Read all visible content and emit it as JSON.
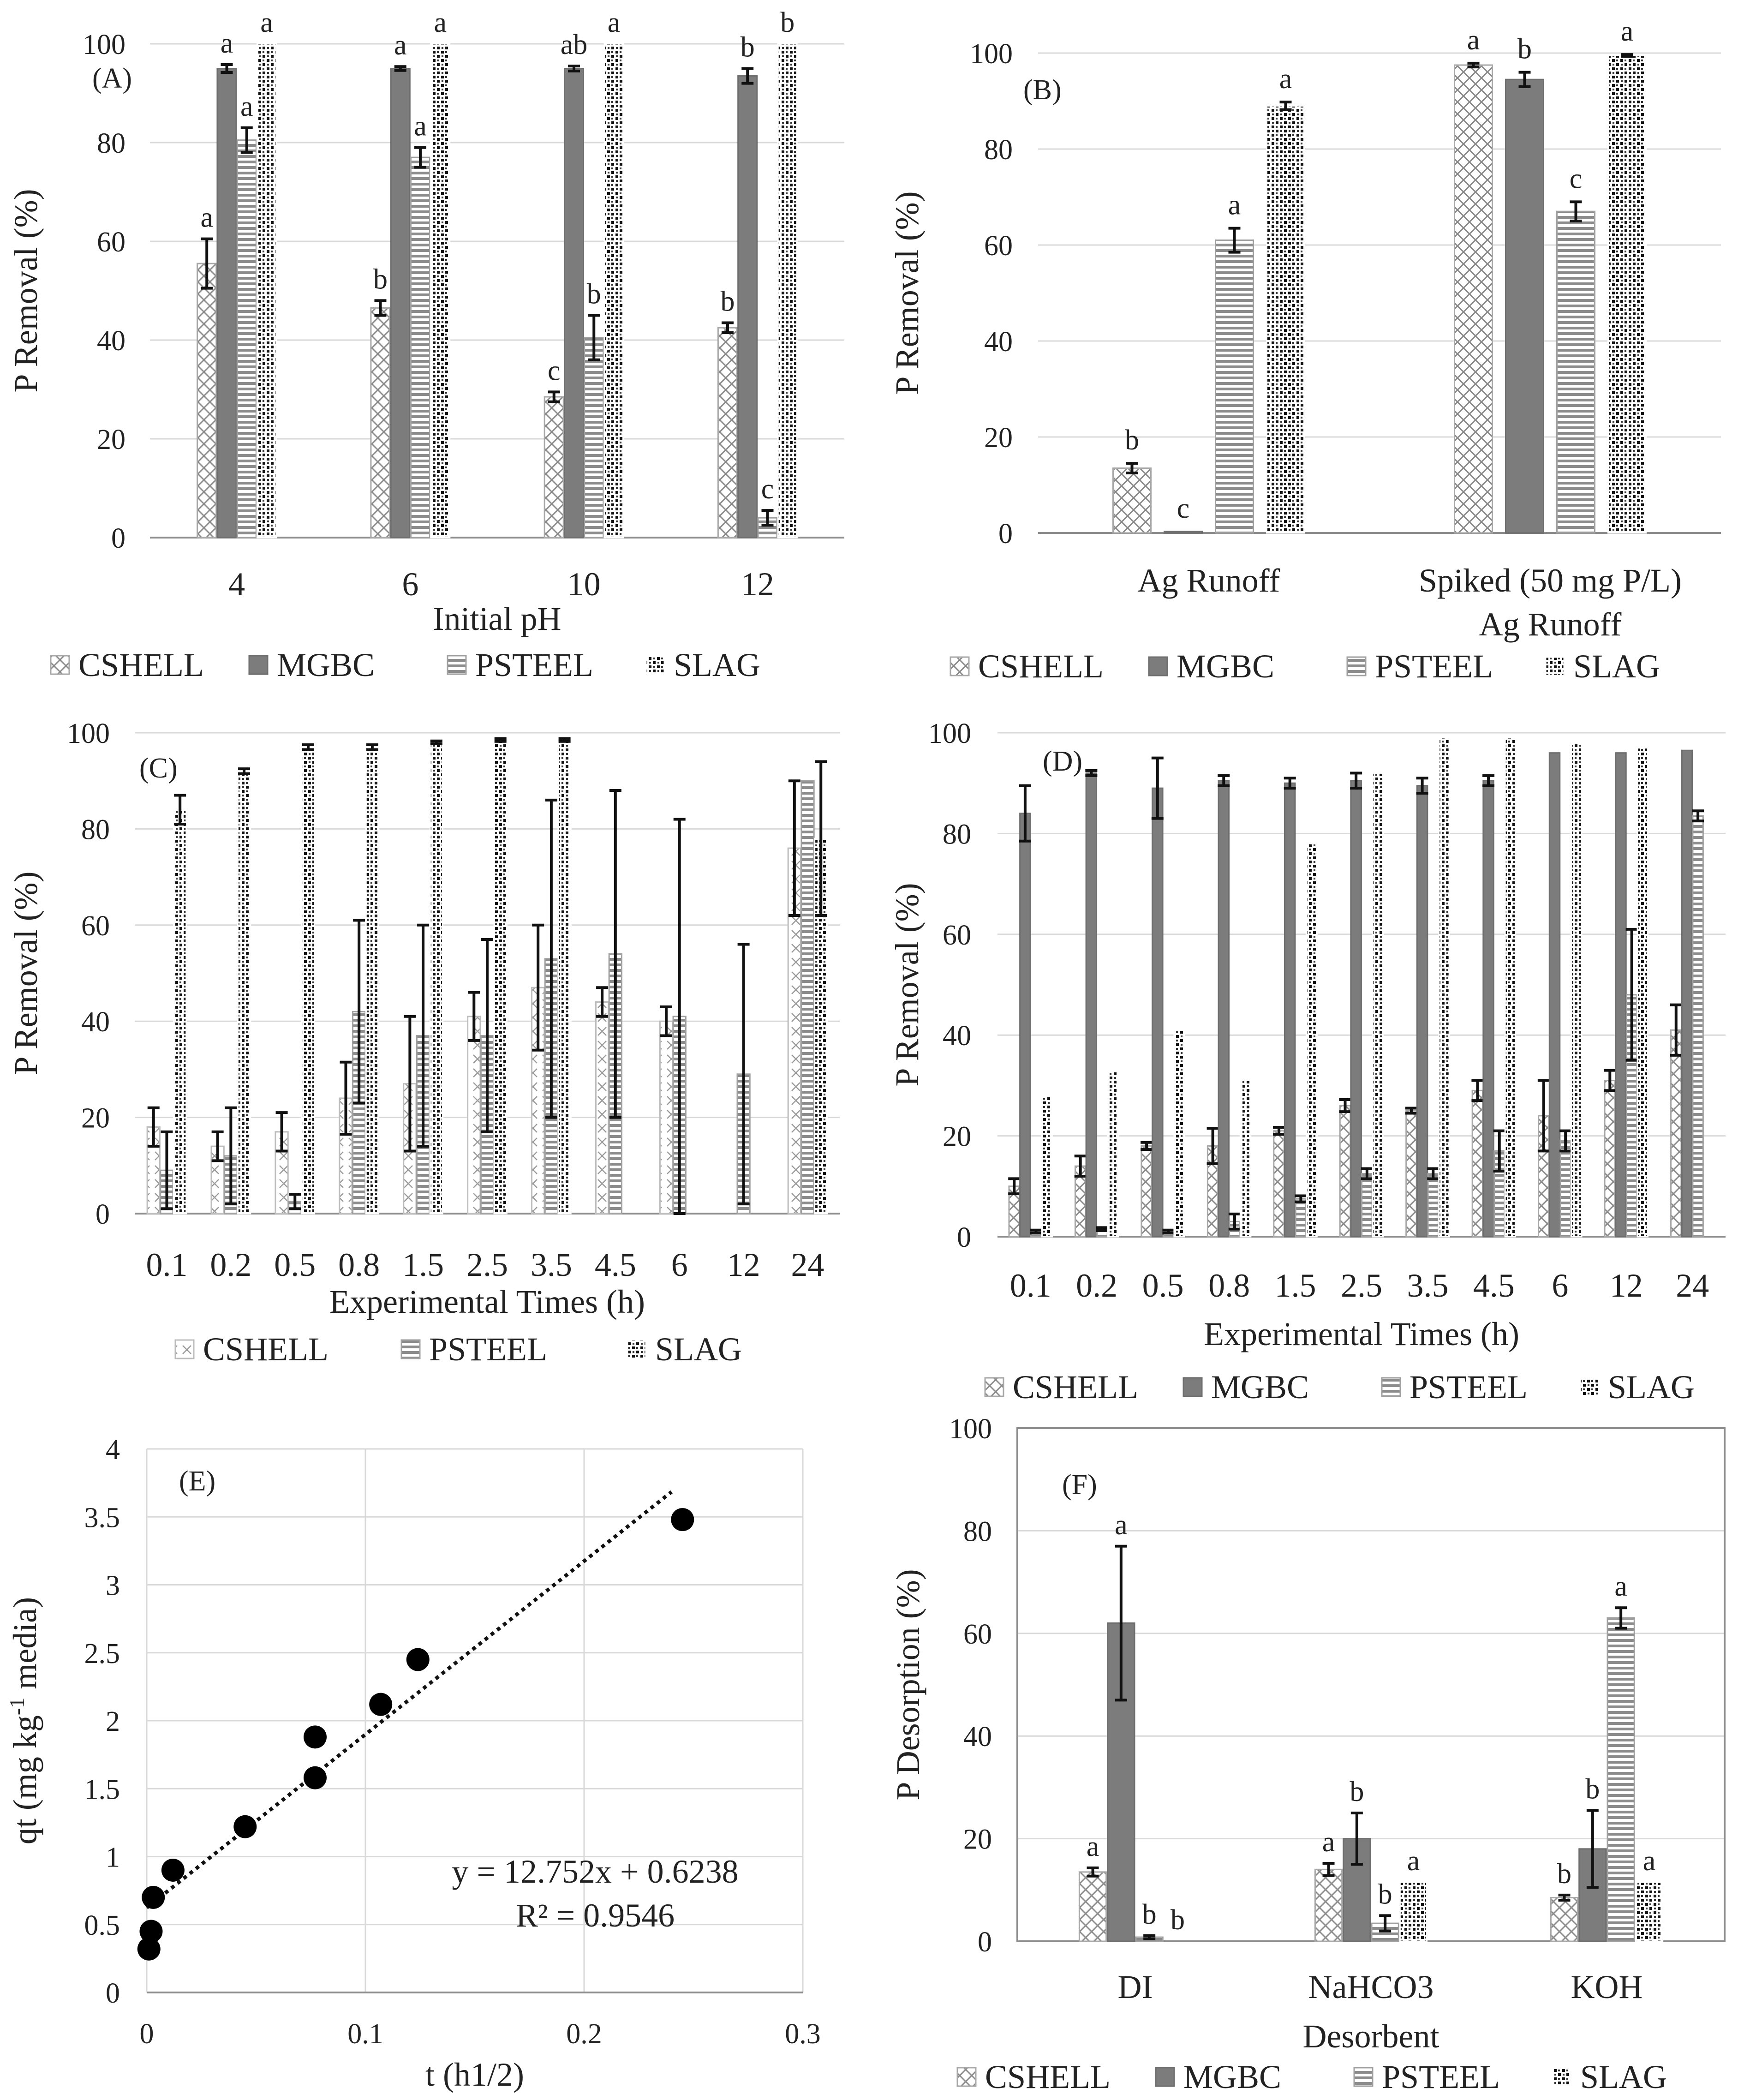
{
  "chart_data": [
    {
      "id": "A",
      "type": "bar",
      "panel_label": "(A)",
      "xlabel": "Initial pH",
      "ylabel": "P Removal  (%)",
      "ylim": [
        0,
        100
      ],
      "ytick_step": 20,
      "grid": true,
      "legend_position": "bottom",
      "categories": [
        "4",
        "6",
        "10",
        "12"
      ],
      "series": [
        {
          "name": "CSHELL",
          "pattern": "crosshatch",
          "values": [
            55.5,
            46.5,
            28.5,
            42.5
          ],
          "errors": [
            5,
            1.5,
            1,
            1
          ],
          "letters": [
            "a",
            "b",
            "c",
            "b"
          ]
        },
        {
          "name": "MGBC",
          "pattern": "solid",
          "values": [
            95,
            95,
            95,
            93.5
          ],
          "errors": [
            0.8,
            0.4,
            0.5,
            1.5
          ],
          "letters": [
            "a",
            "a",
            "ab",
            "b"
          ]
        },
        {
          "name": "PSTEEL",
          "pattern": "hstripe",
          "values": [
            80.5,
            77,
            40.5,
            4
          ],
          "errors": [
            2.5,
            2,
            4.5,
            1.5
          ],
          "letters": [
            "a",
            "a",
            "b",
            "c"
          ]
        },
        {
          "name": "SLAG",
          "pattern": "dots",
          "values": [
            100,
            100,
            100,
            100
          ],
          "errors": [
            0,
            0,
            0,
            0
          ],
          "letters": [
            "a",
            "a",
            "a",
            "b"
          ]
        }
      ]
    },
    {
      "id": "B",
      "type": "bar",
      "panel_label": "(B)",
      "xlabel": "",
      "ylabel": "P Removal (%)",
      "ylim": [
        0,
        100
      ],
      "ytick_step": 20,
      "grid": true,
      "legend_position": "bottom",
      "categories": [
        [
          "Ag Runoff"
        ],
        [
          "Spiked (50 mg P/L)",
          "Ag Runoff"
        ]
      ],
      "series": [
        {
          "name": "CSHELL",
          "pattern": "crosshatch",
          "values": [
            13.5,
            97.5
          ],
          "errors": [
            1,
            0.4
          ],
          "letters": [
            "b",
            "a"
          ]
        },
        {
          "name": "MGBC",
          "pattern": "solid",
          "values": [
            0.3,
            94.5
          ],
          "errors": [
            0,
            1.5
          ],
          "letters": [
            "c",
            "b"
          ]
        },
        {
          "name": "PSTEEL",
          "pattern": "hstripe",
          "values": [
            61,
            67
          ],
          "errors": [
            2.5,
            2
          ],
          "letters": [
            "a",
            "c"
          ]
        },
        {
          "name": "SLAG",
          "pattern": "dots",
          "values": [
            89,
            99.5
          ],
          "errors": [
            0.8,
            0.2
          ],
          "letters": [
            "a",
            "a"
          ]
        }
      ]
    },
    {
      "id": "C",
      "type": "bar",
      "panel_label": "(C)",
      "xlabel": "Experimental Times (h)",
      "ylabel": "P Removal (%)",
      "ylim": [
        0,
        100
      ],
      "ytick_step": 20,
      "grid": true,
      "legend_position": "bottom",
      "categories": [
        "0.1",
        "0.2",
        "0.5",
        "0.8",
        "1.5",
        "2.5",
        "3.5",
        "4.5",
        "6",
        "12",
        "24"
      ],
      "series": [
        {
          "name": "CSHELL",
          "pattern": "xmarks",
          "values": [
            18,
            14,
            17,
            24,
            27,
            41,
            47,
            44,
            40,
            0,
            76
          ],
          "errors": [
            4,
            3,
            4,
            7.5,
            14,
            5,
            13,
            3,
            3,
            0,
            14
          ]
        },
        {
          "name": "PSTEEL",
          "pattern": "hstripe",
          "values": [
            9,
            12,
            2.5,
            42,
            37,
            37,
            53,
            54,
            41,
            29,
            90
          ],
          "errors": [
            8,
            10,
            1.5,
            19,
            23,
            20,
            33,
            34,
            41,
            27,
            0
          ]
        },
        {
          "name": "SLAG",
          "pattern": "dots",
          "values": [
            84,
            92,
            97,
            97,
            98,
            98.5,
            98.5,
            0,
            0,
            0,
            78
          ],
          "errors": [
            3,
            0.5,
            0.5,
            0.5,
            0.3,
            0.3,
            0.3,
            0,
            0,
            0,
            16
          ]
        }
      ]
    },
    {
      "id": "D",
      "type": "bar",
      "panel_label": "(D)",
      "xlabel": "Experimental Times (h)",
      "ylabel": "P Removal (%)",
      "ylim": [
        0,
        100
      ],
      "ytick_step": 20,
      "grid": true,
      "legend_position": "bottom",
      "categories": [
        "0.1",
        "0.2",
        "0.5",
        "0.8",
        "1.5",
        "2.5",
        "3.5",
        "4.5",
        "6",
        "12",
        "24"
      ],
      "series": [
        {
          "name": "CSHELL",
          "pattern": "crosshatch",
          "values": [
            10,
            14,
            18,
            18,
            21,
            26,
            25,
            29,
            24,
            31,
            41
          ],
          "errors": [
            1.5,
            2,
            0.7,
            3.5,
            0.7,
            1.2,
            0.5,
            2,
            7,
            2,
            5
          ]
        },
        {
          "name": "MGBC",
          "pattern": "solid",
          "values": [
            84,
            92,
            89,
            90.5,
            90,
            90.5,
            89.5,
            90.5,
            96,
            96,
            96.5
          ],
          "errors": [
            5.5,
            0.5,
            6,
            1,
            1,
            1.5,
            1.5,
            1,
            0,
            0,
            0
          ]
        },
        {
          "name": "PSTEEL",
          "pattern": "hstripe",
          "values": [
            1,
            1.5,
            1,
            3,
            7.5,
            12.5,
            12.5,
            17,
            19,
            48,
            83.5
          ],
          "errors": [
            0.3,
            0.3,
            0.3,
            1.5,
            0.6,
            1,
            1,
            4,
            2,
            13,
            1
          ]
        },
        {
          "name": "SLAG",
          "pattern": "dots",
          "values": [
            28,
            33,
            41,
            31,
            78,
            92,
            99,
            99,
            98,
            97,
            0
          ],
          "errors": [
            0,
            0,
            0,
            0,
            0,
            0,
            0,
            0,
            0,
            0,
            0
          ]
        }
      ]
    },
    {
      "id": "E",
      "type": "scatter",
      "panel_label": "(E)",
      "xlabel": "t (h1/2)",
      "ylabel_main": "qt (mg kg",
      "ylabel_sup": "-1",
      "ylabel_tail": "media)",
      "xlim": [
        0,
        0.3
      ],
      "ylim": [
        0,
        4
      ],
      "xtick_step": 0.1,
      "ytick_step": 0.5,
      "grid": true,
      "x": [
        0.001,
        0.002,
        0.003,
        0.012,
        0.045,
        0.077,
        0.077,
        0.107,
        0.124,
        0.245
      ],
      "y": [
        0.32,
        0.45,
        0.7,
        0.9,
        1.22,
        1.58,
        1.88,
        2.12,
        2.45,
        3.48
      ],
      "trendline": {
        "slope": 12.752,
        "intercept": 0.6238,
        "x_range": [
          0,
          0.24
        ]
      },
      "equation": "y = 12.752x + 0.6238",
      "r_squared": "R² = 0.9546"
    },
    {
      "id": "F",
      "type": "bar",
      "panel_label": "(F)",
      "xlabel": "Desorbent",
      "ylabel": "P Desorption (%)",
      "ylim": [
        0,
        100
      ],
      "ytick_step": 20,
      "grid": true,
      "legend_position": "bottom",
      "categories": [
        "DI",
        "NaHCO3",
        "KOH"
      ],
      "series": [
        {
          "name": "CSHELL",
          "pattern": "crosshatch",
          "values": [
            13.5,
            14,
            8.5
          ],
          "errors": [
            0.8,
            1.2,
            0.5
          ],
          "letters": [
            "a",
            "a",
            "b"
          ]
        },
        {
          "name": "MGBC",
          "pattern": "solid",
          "values": [
            62,
            20,
            18
          ],
          "errors": [
            15,
            5,
            7.5
          ],
          "letters": [
            "a",
            "b",
            "b"
          ]
        },
        {
          "name": "PSTEEL",
          "pattern": "hstripe",
          "values": [
            0.8,
            3.5,
            63
          ],
          "errors": [
            0.3,
            1.5,
            2
          ],
          "letters": [
            "b",
            "b",
            "a"
          ]
        },
        {
          "name": "SLAG",
          "pattern": "dots",
          "values": [
            0,
            11.5,
            11.5
          ],
          "errors": [
            0,
            0,
            0
          ],
          "letters": [
            "b",
            "a",
            "a"
          ]
        }
      ]
    }
  ]
}
